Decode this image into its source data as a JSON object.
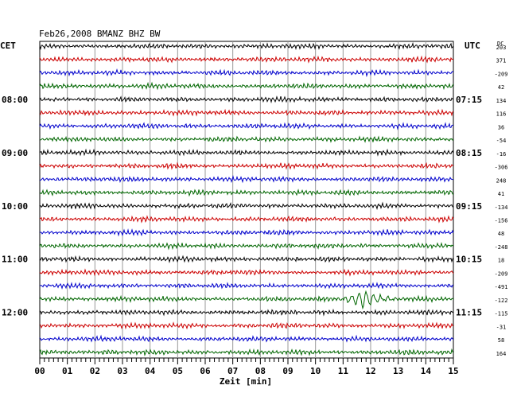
{
  "chart_data": {
    "type": "line",
    "title": "Feb26,2008   BMANZ BHZ BW",
    "left_axis_label": "CET",
    "right_axis_label": "UTC",
    "offset_header": "DC",
    "xlabel": "Zeit [min]",
    "xlim": [
      0,
      15
    ],
    "x_ticks": [
      "00",
      "01",
      "02",
      "03",
      "04",
      "05",
      "06",
      "07",
      "08",
      "09",
      "10",
      "11",
      "12",
      "13",
      "14",
      "15"
    ],
    "left_time_labels": [
      {
        "row": 4,
        "label": "08:00"
      },
      {
        "row": 8,
        "label": "09:00"
      },
      {
        "row": 12,
        "label": "10:00"
      },
      {
        "row": 16,
        "label": "11:00"
      },
      {
        "row": 20,
        "label": "12:00"
      }
    ],
    "right_time_labels": [
      {
        "row": 4,
        "label": "07:15"
      },
      {
        "row": 8,
        "label": "08:15"
      },
      {
        "row": 12,
        "label": "09:15"
      },
      {
        "row": 16,
        "label": "10:15"
      },
      {
        "row": 20,
        "label": "11:15"
      }
    ],
    "offsets": [
      "203",
      "371",
      "-209",
      "42",
      "134",
      "116",
      "36",
      "-54",
      "-16",
      "-306",
      "248",
      "41",
      "-134",
      "-156",
      "48",
      "-248",
      "18",
      "-209",
      "-491",
      "-122",
      "-115",
      "-31",
      "58",
      "164"
    ],
    "trace_colors": [
      "#000000",
      "#cc0000",
      "#0000cc",
      "#006600"
    ],
    "grid": true,
    "event": {
      "row": 19,
      "start_min": 10.6,
      "peak_min": 11.75,
      "end_min": 13.2
    }
  }
}
